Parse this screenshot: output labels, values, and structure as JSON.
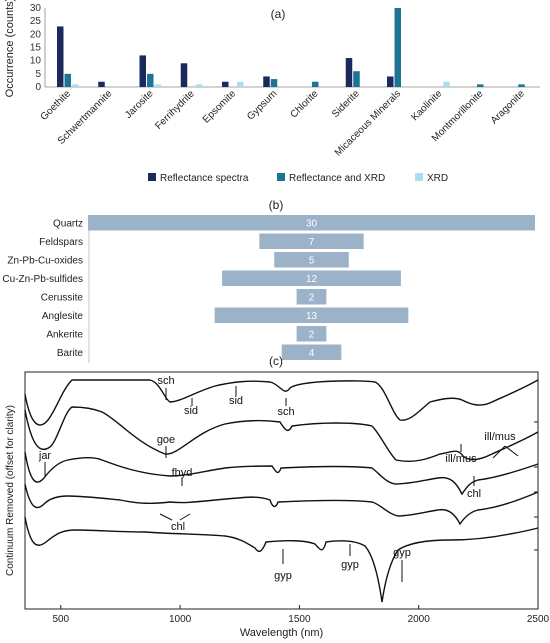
{
  "chart_data": [
    {
      "type": "bar",
      "panel_label": "(a)",
      "ylabel": "Occurrence (counts)",
      "ylim": [
        0,
        30
      ],
      "yticks": [
        0,
        5,
        10,
        15,
        20,
        25,
        30
      ],
      "legend_position": "bottom",
      "categories": [
        "Goethite",
        "Schwertmannite",
        "Jarosite",
        "Ferrihydrite",
        "Epsomite",
        "Gypsum",
        "Chlorite",
        "Siderite",
        "Micaceous Minerals",
        "Kaolinite",
        "Montmorillonite",
        "Aragonite"
      ],
      "series": [
        {
          "name": "Reflectance spectra",
          "color": "#1b2a5c",
          "values": [
            23,
            2,
            12,
            9,
            2,
            4,
            0,
            11,
            4,
            0,
            0,
            0
          ]
        },
        {
          "name": "Reflectance and XRD",
          "color": "#1e7495",
          "values": [
            5,
            0,
            5,
            0,
            0,
            3,
            2,
            6,
            30,
            0,
            1,
            1
          ]
        },
        {
          "name": "XRD",
          "color": "#a9def0",
          "values": [
            1,
            0,
            1,
            1,
            2,
            0,
            0,
            0,
            0,
            2,
            0,
            0
          ]
        }
      ]
    },
    {
      "type": "bar",
      "orientation": "horizontal",
      "panel_label": "(b)",
      "color": "#9bb2c9",
      "categories": [
        "Quartz",
        "Feldspars",
        "Zn-Pb-Cu-oxides",
        "Cu-Zn-Pb-sulfides",
        "Cerussite",
        "Anglesite",
        "Ankerite",
        "Barite"
      ],
      "values": [
        30,
        7,
        5,
        12,
        2,
        13,
        2,
        4
      ]
    },
    {
      "type": "line",
      "panel_label": "(c)",
      "xlabel": "Wavelength (nm)",
      "ylabel": "Continuum Removed (offset for clarity)",
      "xlim": [
        350,
        2500
      ],
      "xticks": [
        500,
        1000,
        1500,
        2000,
        2500
      ],
      "annotations": [
        "sch",
        "sid",
        "sid",
        "sch",
        "goe",
        "fhyd",
        "jar",
        "ill/mus",
        "ill/mus",
        "chl",
        "chl",
        "gyp",
        "gyp",
        "gyp"
      ]
    }
  ]
}
